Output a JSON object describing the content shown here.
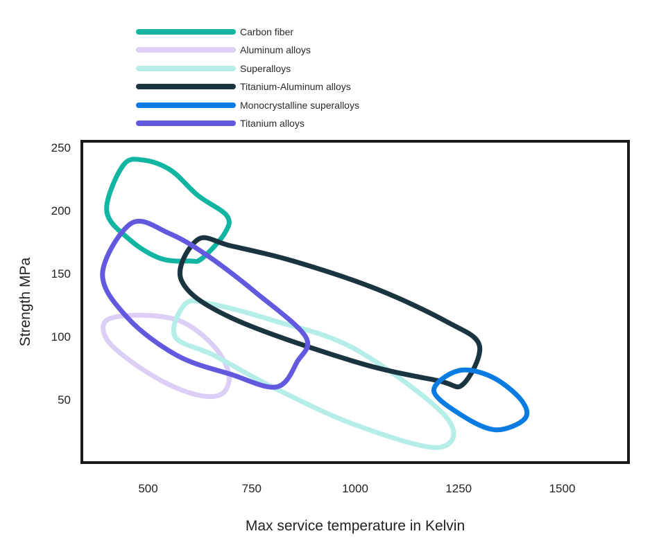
{
  "chart_data": {
    "type": "scatter",
    "title": "",
    "xlabel": "Max service temperature in Kelvin",
    "ylabel": "Strength MPa",
    "xlim": [
      340,
      1660
    ],
    "ylim": [
      0,
      255
    ],
    "xticks": [
      500,
      750,
      1000,
      1250,
      1500
    ],
    "yticks": [
      50,
      100,
      150,
      200,
      250
    ],
    "grid": false,
    "legend_position": "top-left",
    "series": [
      {
        "name": "Carbon fiber",
        "color": "#12B5A2",
        "outline": [
          [
            440,
            236
          ],
          [
            490,
            240
          ],
          [
            555,
            232
          ],
          [
            620,
            212
          ],
          [
            690,
            196
          ],
          [
            685,
            182
          ],
          [
            630,
            162
          ],
          [
            600,
            160
          ],
          [
            530,
            162
          ],
          [
            455,
            177
          ],
          [
            400,
            200
          ]
        ]
      },
      {
        "name": "Aluminum alloys",
        "color": "#DCCEF6",
        "outline": [
          [
            400,
            113
          ],
          [
            480,
            117
          ],
          [
            580,
            112
          ],
          [
            660,
            92
          ],
          [
            695,
            70
          ],
          [
            680,
            55
          ],
          [
            630,
            53
          ],
          [
            550,
            62
          ],
          [
            460,
            80
          ],
          [
            400,
            98
          ]
        ]
      },
      {
        "name": "Superalloys",
        "color": "#B5EEE8",
        "outline": [
          [
            590,
            126
          ],
          [
            650,
            126
          ],
          [
            800,
            113
          ],
          [
            1000,
            90
          ],
          [
            1220,
            36
          ],
          [
            1200,
            12
          ],
          [
            1000,
            30
          ],
          [
            800,
            60
          ],
          [
            660,
            85
          ],
          [
            565,
            100
          ]
        ]
      },
      {
        "name": "Titanium-Aluminum alloys",
        "color": "#1B3540",
        "outline": [
          [
            620,
            177
          ],
          [
            700,
            172
          ],
          [
            850,
            160
          ],
          [
            1050,
            138
          ],
          [
            1220,
            112
          ],
          [
            1300,
            93
          ],
          [
            1260,
            62
          ],
          [
            1200,
            65
          ],
          [
            1000,
            80
          ],
          [
            700,
            115
          ],
          [
            580,
            145
          ]
        ]
      },
      {
        "name": "Monocrystalline superalloys",
        "color": "#0A7BE0",
        "outline": [
          [
            1250,
            73
          ],
          [
            1330,
            68
          ],
          [
            1400,
            50
          ],
          [
            1410,
            35
          ],
          [
            1340,
            26
          ],
          [
            1260,
            37
          ],
          [
            1190,
            57
          ]
        ]
      },
      {
        "name": "Titanium alloys",
        "color": "#6259DE",
        "outline": [
          [
            460,
            190
          ],
          [
            550,
            182
          ],
          [
            640,
            165
          ],
          [
            760,
            135
          ],
          [
            880,
            100
          ],
          [
            860,
            80
          ],
          [
            810,
            60
          ],
          [
            700,
            70
          ],
          [
            570,
            85
          ],
          [
            450,
            115
          ],
          [
            390,
            150
          ]
        ]
      }
    ]
  }
}
